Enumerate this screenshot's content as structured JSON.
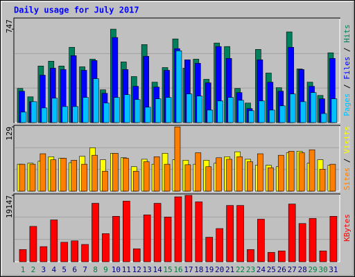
{
  "chart_data": [
    {
      "type": "bar",
      "title": "Daily usage for July 2017",
      "ylim": [
        0,
        836
      ],
      "yticks": [
        747
      ],
      "legend_separator": " / ",
      "series": [
        {
          "name": "Pages",
          "color": "#00c0ff",
          "values": [
            84,
            167,
            117,
            195,
            128,
            128,
            201,
            351,
            156,
            201,
            223,
            184,
            123,
            190,
            201,
            574,
            229,
            212,
            100,
            173,
            201,
            178,
            95,
            173,
            100,
            134,
            229,
            167,
            240,
            72,
            190
          ]
        },
        {
          "name": "Files",
          "color": "#0000ff",
          "values": [
            251,
            167,
            379,
            435,
            424,
            535,
            418,
            496,
            234,
            680,
            424,
            290,
            530,
            284,
            418,
            591,
            502,
            474,
            318,
            608,
            513,
            240,
            112,
            502,
            323,
            251,
            602,
            424,
            290,
            190,
            513
          ]
        },
        {
          "name": "Hits",
          "color": "#00805c",
          "values": [
            273,
            206,
            452,
            491,
            452,
            602,
            446,
            507,
            262,
            747,
            485,
            368,
            624,
            323,
            440,
            669,
            435,
            507,
            346,
            636,
            608,
            273,
            156,
            585,
            396,
            279,
            725,
            429,
            323,
            217,
            558
          ]
        }
      ]
    },
    {
      "type": "bar",
      "ylim": [
        0,
        132
      ],
      "yticks": [
        129
      ],
      "legend_separator": " / ",
      "series": [
        {
          "name": "Sites",
          "color": "#ff8000",
          "values": [
            54,
            54,
            75,
            63,
            66,
            62,
            54,
            72,
            40,
            76,
            66,
            40,
            59,
            69,
            54,
            129,
            53,
            77,
            49,
            67,
            64,
            69,
            59,
            75,
            47,
            72,
            80,
            77,
            83,
            44,
            54
          ]
        },
        {
          "name": "Visits",
          "color": "#ffff00",
          "values": [
            54,
            56,
            60,
            69,
            66,
            57,
            70,
            87,
            63,
            76,
            67,
            49,
            64,
            54,
            76,
            63,
            62,
            54,
            62,
            56,
            69,
            79,
            64,
            52,
            52,
            49,
            77,
            80,
            56,
            63,
            52
          ]
        }
      ]
    },
    {
      "type": "bar",
      "ylim": [
        0,
        19561
      ],
      "yticks": [
        19147
      ],
      "categories": [
        "1",
        "2",
        "3",
        "4",
        "5",
        "6",
        "7",
        "8",
        "9",
        "10",
        "11",
        "12",
        "13",
        "14",
        "15",
        "16",
        "17",
        "18",
        "19",
        "20",
        "21",
        "22",
        "23",
        "24",
        "25",
        "26",
        "27",
        "28",
        "29",
        "30",
        "31"
      ],
      "category_colors": [
        "#008040",
        "#008040",
        "#000080",
        "#000080",
        "#000080",
        "#000080",
        "#000080",
        "#008040",
        "#008040",
        "#000080",
        "#000080",
        "#000080",
        "#000080",
        "#000080",
        "#008040",
        "#008040",
        "#000080",
        "#000080",
        "#000080",
        "#000080",
        "#000080",
        "#008040",
        "#008040",
        "#000080",
        "#000080",
        "#000080",
        "#000080",
        "#000080",
        "#008040",
        "#008040",
        "#000080"
      ],
      "series": [
        {
          "name": "KBytes",
          "color": "#ff0000",
          "values": [
            3538,
            10197,
            4370,
            12069,
            5619,
            6035,
            4994,
            16856,
            8116,
            13110,
            17480,
            3746,
            13526,
            16856,
            12902,
            18729,
            19147,
            17272,
            7075,
            9572,
            16232,
            16232,
            3538,
            12278,
            2705,
            3121,
            16648,
            11029,
            12486,
            3121,
            13110
          ]
        }
      ]
    }
  ]
}
